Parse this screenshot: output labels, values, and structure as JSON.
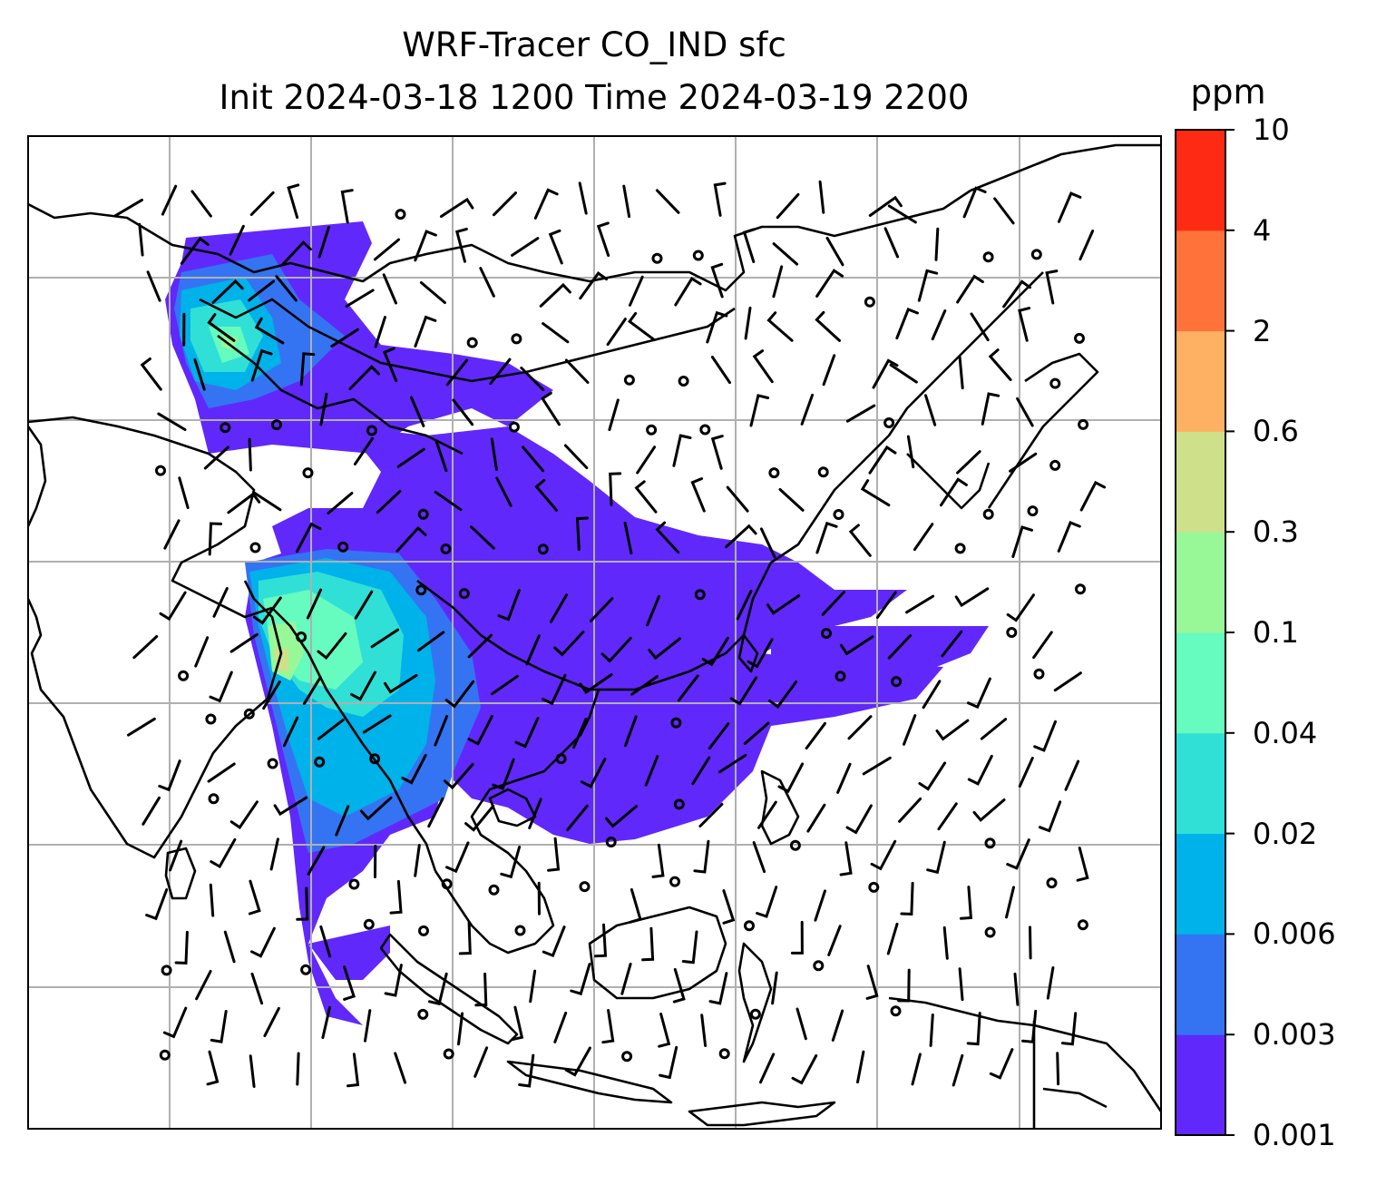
{
  "title": {
    "line1": "WRF-Tracer CO_IND sfc",
    "line2": "Init 2024-03-18 1200 Time 2024-03-19 2200"
  },
  "colorbar": {
    "unit": "ppm",
    "ticks": [
      "0.001",
      "0.003",
      "0.006",
      "0.02",
      "0.04",
      "0.1",
      "0.3",
      "0.6",
      "2",
      "4",
      "10"
    ],
    "colors": [
      "#6128fb",
      "#3474f2",
      "#00b2ea",
      "#30e0d6",
      "#66fbbf",
      "#98f898",
      "#cfe08a",
      "#feb063",
      "#ff733b",
      "#ff2a14"
    ]
  },
  "map": {
    "type": "filled contour map with wind barbs",
    "field": "surface CO tracer concentration",
    "gridlines": true,
    "coastlines": true,
    "country_borders": true,
    "calm_wind_symbol": "open circle"
  }
}
